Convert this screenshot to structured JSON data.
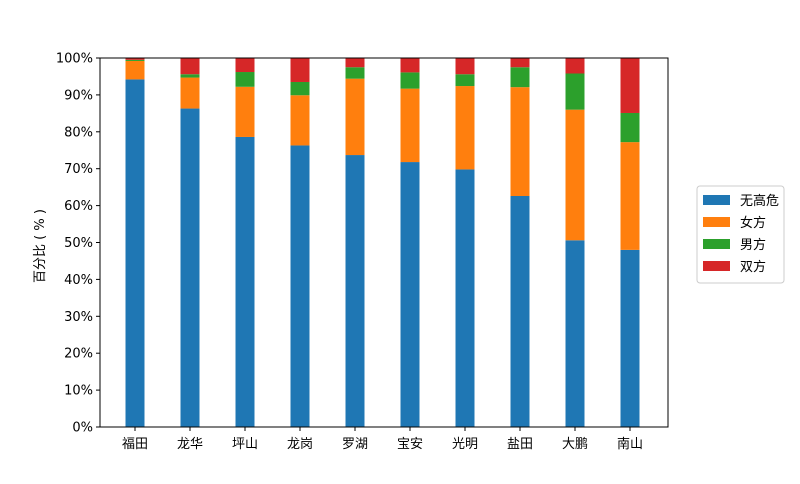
{
  "chart_data": {
    "type": "bar",
    "stacked": true,
    "title": "",
    "xlabel": "",
    "ylabel": "百分比 ( % )",
    "ylim": [
      0,
      100
    ],
    "y_ticks": [
      "0%",
      "10%",
      "20%",
      "30%",
      "40%",
      "50%",
      "60%",
      "70%",
      "80%",
      "90%",
      "100%"
    ],
    "grid": false,
    "legend_position": "right",
    "categories": [
      "福田",
      "龙华",
      "坪山",
      "龙岗",
      "罗湖",
      "宝安",
      "光明",
      "盐田",
      "大鹏",
      "南山"
    ],
    "series": [
      {
        "name": "无高危",
        "color": "#1f77b4",
        "values": [
          94.2,
          86.3,
          78.6,
          76.3,
          73.7,
          71.8,
          69.8,
          62.6,
          50.6,
          48.0
        ]
      },
      {
        "name": "女方",
        "color": "#ff7f0e",
        "values": [
          5.0,
          8.4,
          13.6,
          13.6,
          20.7,
          19.9,
          22.6,
          29.5,
          35.4,
          29.2
        ]
      },
      {
        "name": "男方",
        "color": "#2ca02c",
        "values": [
          0.3,
          0.9,
          4.0,
          3.6,
          3.1,
          4.4,
          3.2,
          5.4,
          9.8,
          7.9
        ]
      },
      {
        "name": "双方",
        "color": "#d62728",
        "values": [
          0.5,
          4.4,
          3.8,
          6.5,
          2.5,
          3.9,
          4.4,
          2.5,
          4.2,
          14.9
        ]
      }
    ]
  }
}
